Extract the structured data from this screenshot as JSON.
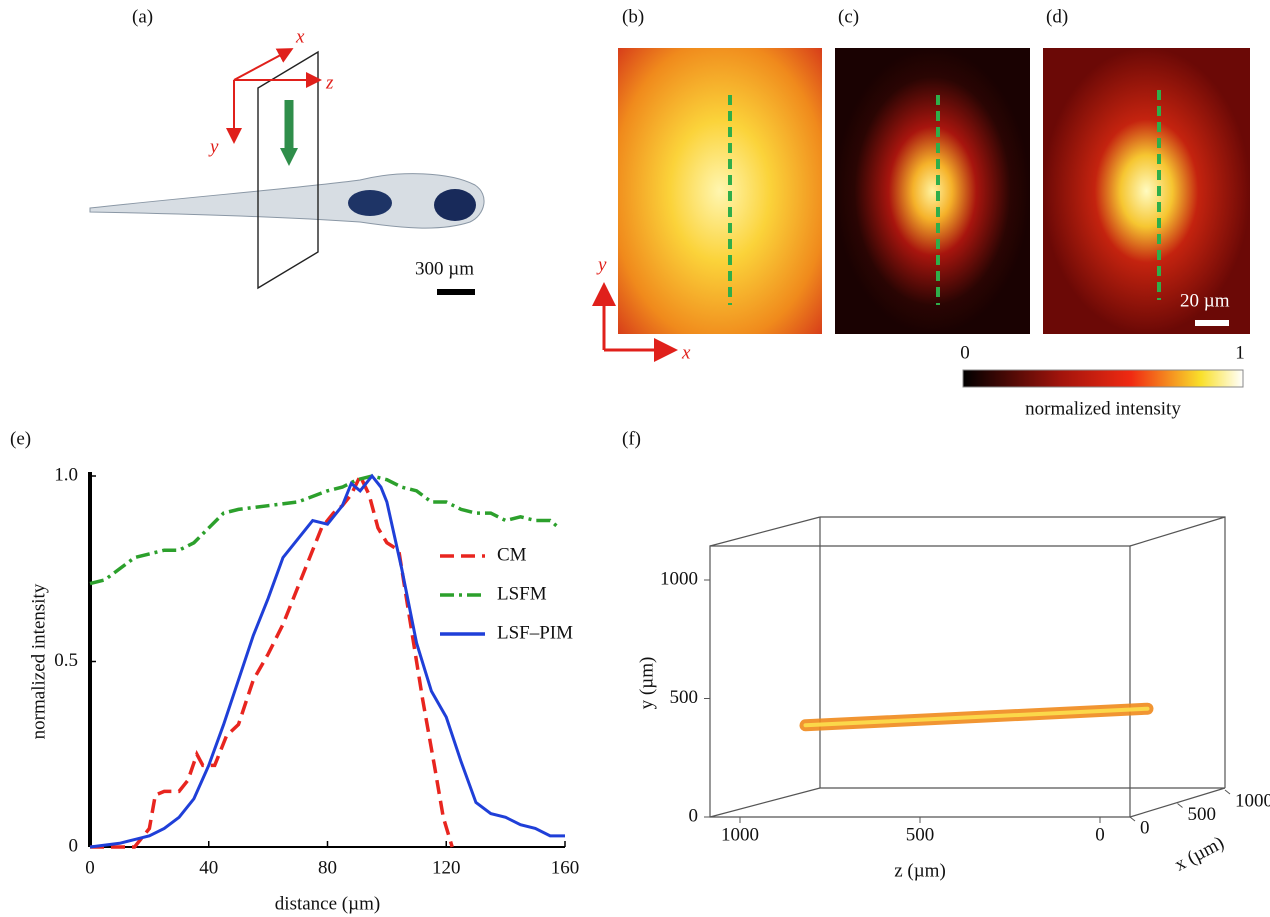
{
  "panels": {
    "a": {
      "label": "(a)",
      "axes": {
        "x": "x",
        "y": "y",
        "z": "z"
      },
      "scale_bar": "300 µm"
    },
    "b": {
      "label": "(b)",
      "axes": {
        "x": "x",
        "y": "y"
      }
    },
    "c": {
      "label": "(c)"
    },
    "d": {
      "label": "(d)",
      "scale_bar": "20 µm"
    },
    "colorbar": {
      "min": "0",
      "max": "1",
      "label": "normalized intensity"
    }
  },
  "chart_data": [
    {
      "type": "line",
      "panel": "(e)",
      "xlabel": "distance (µm)",
      "ylabel": "normalized intensity",
      "xlim": [
        0,
        160
      ],
      "xticks": [
        0,
        40,
        80,
        120,
        160
      ],
      "ylim": [
        0,
        1
      ],
      "yticks": [
        0,
        0.5,
        {
          "value": 1,
          "label": "1.0"
        }
      ],
      "series": [
        {
          "name": "CM",
          "color": "#e8251f",
          "dash": "dashed",
          "x": [
            0,
            15,
            20,
            22,
            25,
            30,
            33,
            36,
            38,
            42,
            46,
            50,
            55,
            60,
            65,
            70,
            75,
            78,
            82,
            85,
            88,
            91,
            94,
            97,
            100,
            104,
            108,
            112,
            116,
            119,
            122
          ],
          "values": [
            0,
            0,
            0.05,
            0.14,
            0.15,
            0.15,
            0.18,
            0.25,
            0.22,
            0.22,
            0.3,
            0.33,
            0.45,
            0.52,
            0.6,
            0.7,
            0.8,
            0.86,
            0.9,
            0.92,
            0.95,
            1.0,
            0.95,
            0.86,
            0.82,
            0.8,
            0.6,
            0.4,
            0.22,
            0.08,
            0
          ]
        },
        {
          "name": "LSFM",
          "color": "#2ca02c",
          "dash": "dashdot",
          "x": [
            0,
            5,
            10,
            15,
            20,
            25,
            30,
            35,
            40,
            45,
            50,
            60,
            70,
            80,
            85,
            90,
            95,
            100,
            105,
            110,
            115,
            120,
            125,
            130,
            135,
            140,
            145,
            150,
            155,
            158
          ],
          "values": [
            0.71,
            0.72,
            0.75,
            0.78,
            0.79,
            0.8,
            0.8,
            0.82,
            0.86,
            0.9,
            0.91,
            0.92,
            0.93,
            0.96,
            0.97,
            0.99,
            1.0,
            0.99,
            0.97,
            0.96,
            0.93,
            0.93,
            0.91,
            0.9,
            0.9,
            0.88,
            0.89,
            0.88,
            0.88,
            0.86
          ]
        },
        {
          "name": "LSF–PIM",
          "color": "#1f3fd8",
          "dash": "solid",
          "x": [
            0,
            10,
            15,
            20,
            25,
            30,
            35,
            40,
            45,
            50,
            55,
            60,
            65,
            70,
            75,
            80,
            85,
            88,
            91,
            95,
            98,
            100,
            105,
            110,
            115,
            120,
            125,
            130,
            135,
            140,
            145,
            150,
            155,
            160
          ],
          "values": [
            0,
            0.01,
            0.02,
            0.03,
            0.05,
            0.08,
            0.13,
            0.22,
            0.33,
            0.45,
            0.57,
            0.67,
            0.78,
            0.83,
            0.88,
            0.87,
            0.92,
            0.98,
            0.96,
            1.0,
            0.97,
            0.93,
            0.75,
            0.55,
            0.42,
            0.35,
            0.23,
            0.12,
            0.09,
            0.08,
            0.06,
            0.05,
            0.03,
            0.03
          ]
        }
      ]
    },
    {
      "type": "line3d",
      "panel": "(f)",
      "xlabel": "x (µm)",
      "ylabel": "y (µm)",
      "zlabel": "z (µm)",
      "xlim": [
        0,
        1000
      ],
      "xticks": [
        0,
        500,
        1000
      ],
      "ylim": [
        0,
        1000
      ],
      "yticks": [
        0,
        500,
        1000
      ],
      "zlim": [
        0,
        1000
      ],
      "zticks": [
        1000,
        500,
        0
      ],
      "series": [
        {
          "color": "#f08a1c",
          "z": [
            950,
            0
          ],
          "x": [
            500,
            500
          ],
          "y": [
            330,
            400
          ]
        }
      ]
    }
  ]
}
